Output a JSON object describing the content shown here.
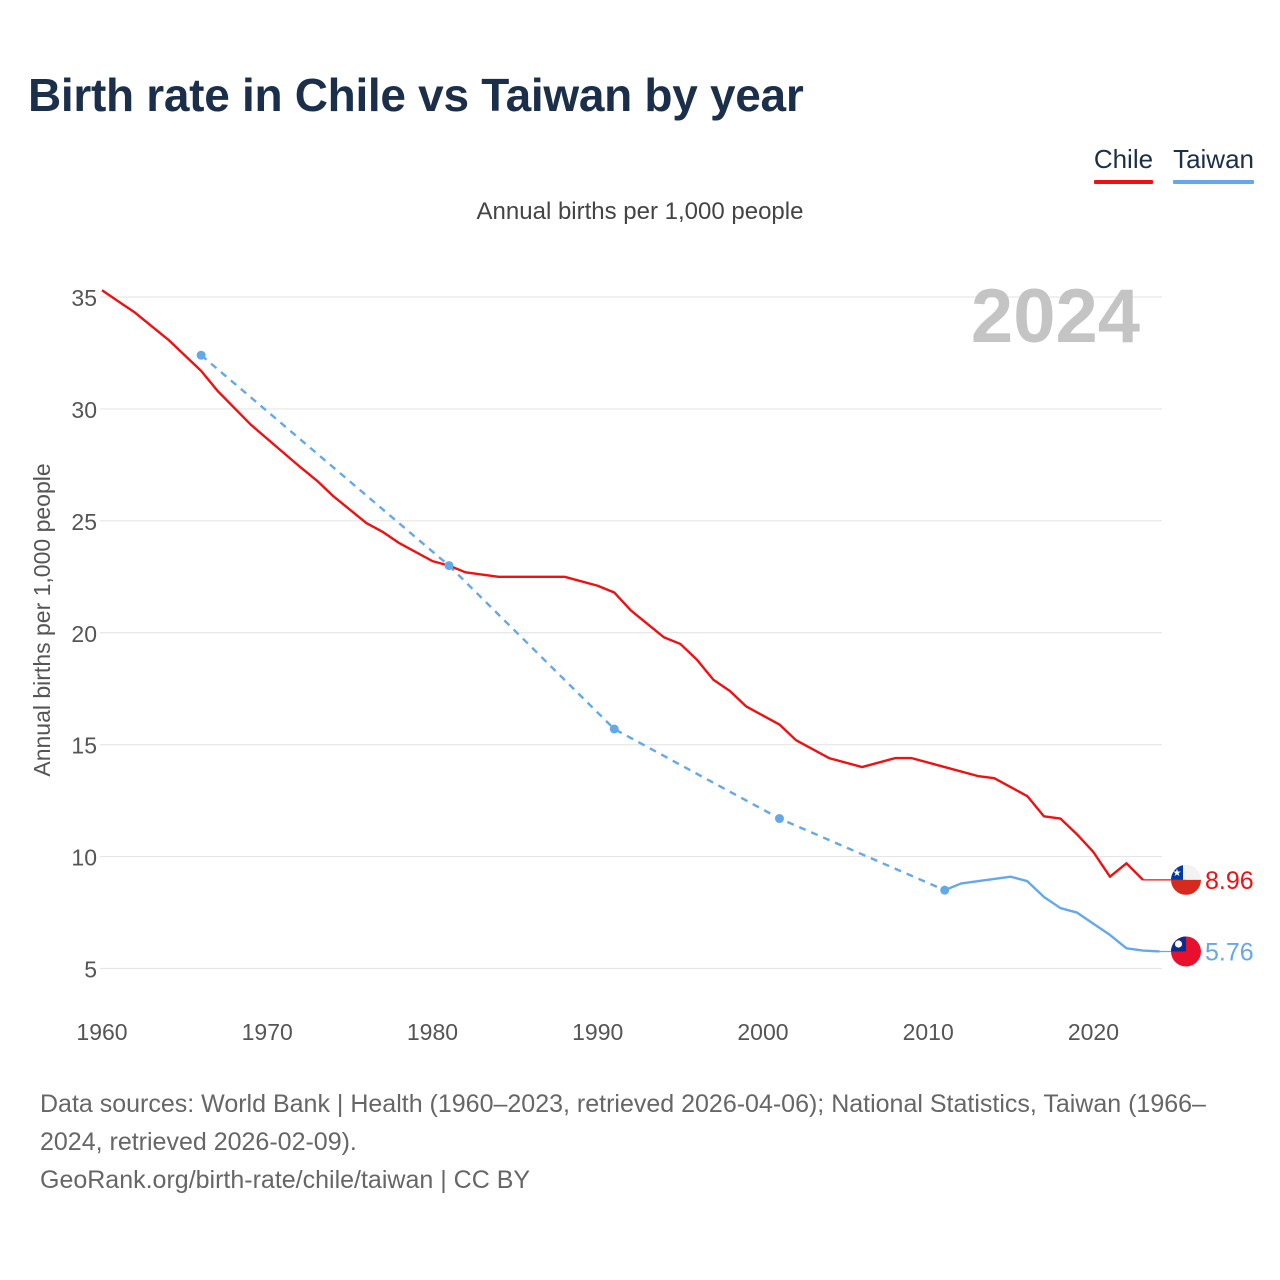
{
  "title": "Birth rate in Chile vs Taiwan by year",
  "subtitle": "Annual births per 1,000 people",
  "legend": [
    {
      "label": "Chile",
      "color": "#ee1111"
    },
    {
      "label": "Taiwan",
      "color": "#63a9ea"
    }
  ],
  "footer": {
    "sources": "Data sources: World Bank | Health (1960–2023, retrieved 2026-04-06); National Statistics, Taiwan (1966–2024, retrieved 2026-02-09).",
    "credit": "GeoRank.org/birth-rate/chile/taiwan | CC BY"
  },
  "chart_data": {
    "type": "line",
    "title": "Birth rate in Chile vs Taiwan by year",
    "subtitle": "Annual births per 1,000 people",
    "ylabel": "Annual births per 1,000 people",
    "xlabel": "",
    "year_label": "2024",
    "xlim": [
      1960,
      2024
    ],
    "ylim": [
      3,
      36
    ],
    "x_ticks": [
      1960,
      1970,
      1980,
      1990,
      2000,
      2010,
      2020
    ],
    "y_ticks": [
      5,
      10,
      15,
      20,
      25,
      30,
      35
    ],
    "grid": true,
    "series": [
      {
        "name": "Chile",
        "color": "#ee1111",
        "end_label": "8.96",
        "end_value": 8.96,
        "points": [
          [
            1960,
            35.3
          ],
          [
            1962,
            34.3
          ],
          [
            1964,
            33.1
          ],
          [
            1966,
            31.7
          ],
          [
            1967,
            30.8
          ],
          [
            1969,
            29.3
          ],
          [
            1972,
            27.4
          ],
          [
            1973,
            26.8
          ],
          [
            1974,
            26.1
          ],
          [
            1976,
            24.9
          ],
          [
            1977,
            24.5
          ],
          [
            1978,
            24.0
          ],
          [
            1980,
            23.2
          ],
          [
            1981,
            23.0
          ],
          [
            1982,
            22.7
          ],
          [
            1984,
            22.5
          ],
          [
            1986,
            22.5
          ],
          [
            1988,
            22.5
          ],
          [
            1990,
            22.1
          ],
          [
            1991,
            21.8
          ],
          [
            1992,
            21.0
          ],
          [
            1994,
            19.8
          ],
          [
            1995,
            19.5
          ],
          [
            1996,
            18.8
          ],
          [
            1997,
            17.9
          ],
          [
            1998,
            17.4
          ],
          [
            1999,
            16.7
          ],
          [
            2000,
            16.3
          ],
          [
            2001,
            15.9
          ],
          [
            2002,
            15.2
          ],
          [
            2004,
            14.4
          ],
          [
            2006,
            14.0
          ],
          [
            2008,
            14.4
          ],
          [
            2009,
            14.4
          ],
          [
            2011,
            14.0
          ],
          [
            2013,
            13.6
          ],
          [
            2014,
            13.5
          ],
          [
            2015,
            13.1
          ],
          [
            2016,
            12.7
          ],
          [
            2017,
            11.8
          ],
          [
            2018,
            11.7
          ],
          [
            2019,
            11.0
          ],
          [
            2020,
            10.2
          ],
          [
            2021,
            9.1
          ],
          [
            2022,
            9.7
          ],
          [
            2023,
            8.96
          ],
          [
            2024,
            8.96
          ]
        ]
      },
      {
        "name": "Taiwan",
        "color": "#63a9ea",
        "end_label": "5.76",
        "end_value": 5.76,
        "sparse_points": [
          [
            1966,
            32.4
          ],
          [
            1981,
            23.0
          ],
          [
            1991,
            15.7
          ],
          [
            2001,
            11.7
          ],
          [
            2011,
            8.5
          ]
        ],
        "points": [
          [
            2011,
            8.5
          ],
          [
            2012,
            8.8
          ],
          [
            2015,
            9.1
          ],
          [
            2016,
            8.9
          ],
          [
            2017,
            8.2
          ],
          [
            2018,
            7.7
          ],
          [
            2019,
            7.5
          ],
          [
            2020,
            7.0
          ],
          [
            2021,
            6.5
          ],
          [
            2022,
            5.9
          ],
          [
            2023,
            5.8
          ],
          [
            2024,
            5.76
          ]
        ]
      }
    ]
  }
}
